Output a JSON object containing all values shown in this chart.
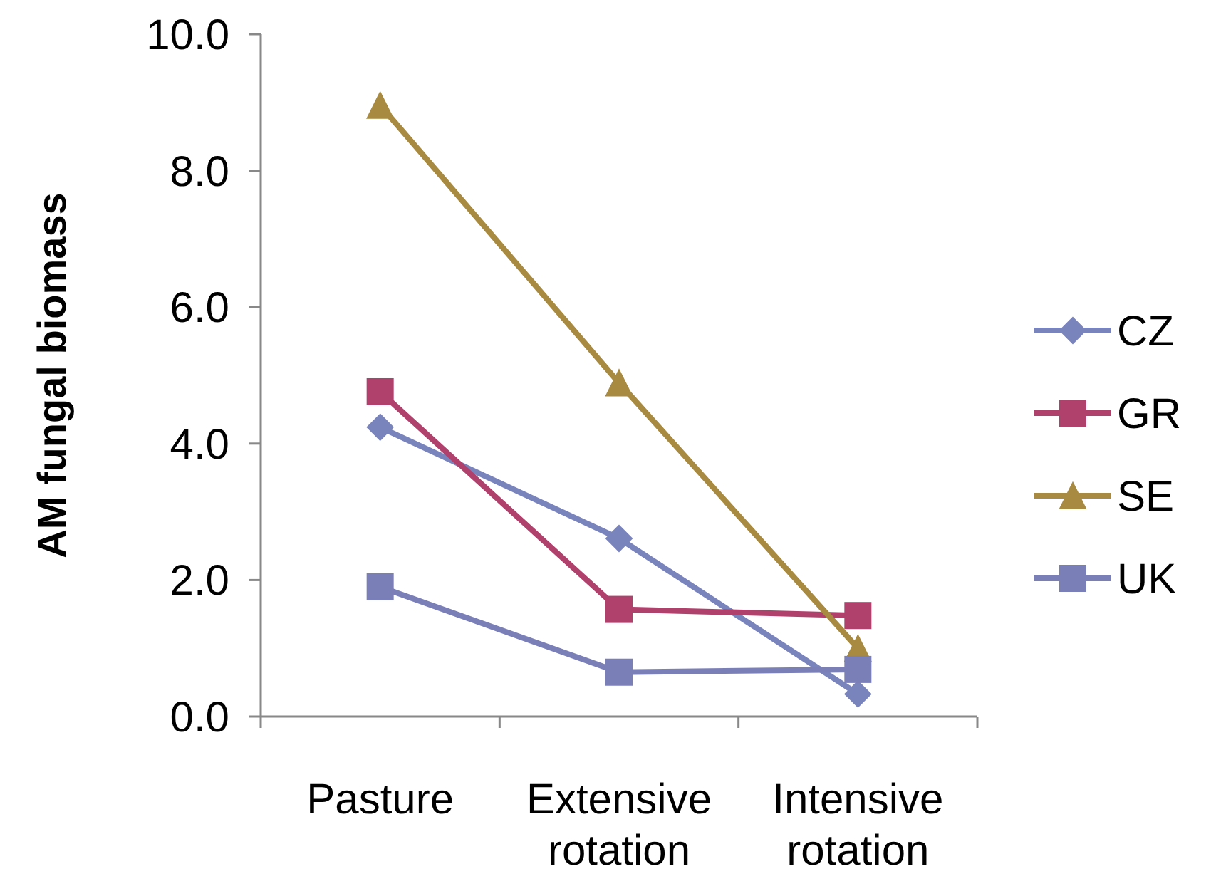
{
  "chart_data": {
    "type": "line",
    "ylabel": "AM fungal biomass",
    "categories": [
      "Pasture",
      "Extensive rotation",
      "Intensive rotation"
    ],
    "ylim": [
      0,
      10
    ],
    "yticks": [
      {
        "value": 0,
        "label": "0.0"
      },
      {
        "value": 2,
        "label": "2.0"
      },
      {
        "value": 4,
        "label": "4.0"
      },
      {
        "value": 6,
        "label": "6.0"
      },
      {
        "value": 8,
        "label": "8.0"
      },
      {
        "value": 10,
        "label": "10.0"
      }
    ],
    "grid": false,
    "legend": "right",
    "series": [
      {
        "name": "CZ",
        "color": "#7a84bc",
        "marker": "diamond",
        "values": [
          4.24,
          2.61,
          0.33
        ]
      },
      {
        "name": "GR",
        "color": "#b0406c",
        "marker": "square",
        "values": [
          4.76,
          1.57,
          1.48
        ]
      },
      {
        "name": "SE",
        "color": "#a88a40",
        "marker": "triangle",
        "values": [
          8.96,
          4.89,
          1.0
        ]
      },
      {
        "name": "UK",
        "color": "#7b7fb8",
        "marker": "square",
        "values": [
          1.9,
          0.65,
          0.69
        ]
      }
    ]
  }
}
